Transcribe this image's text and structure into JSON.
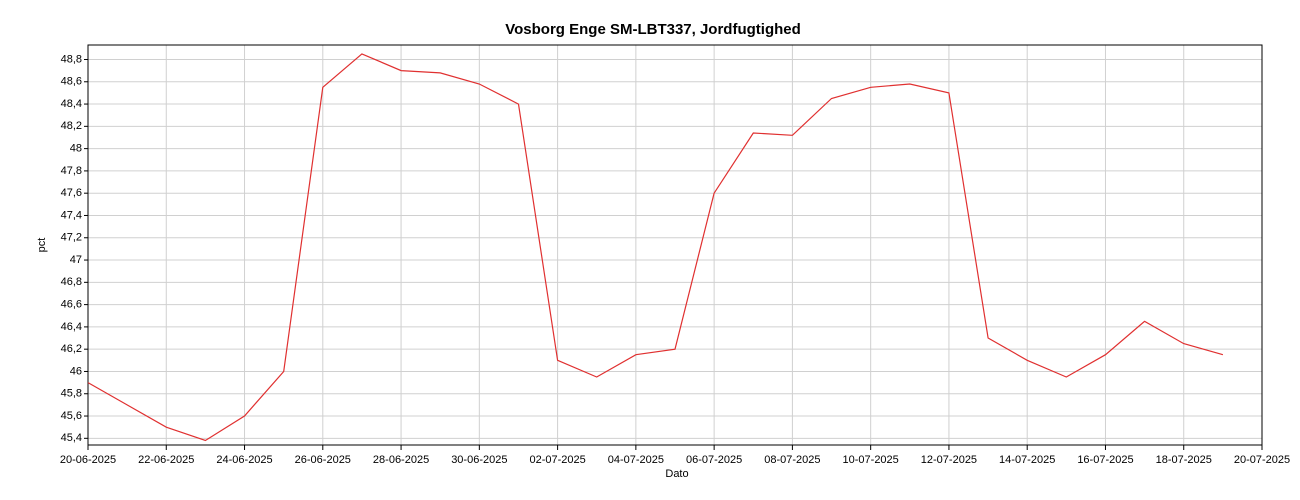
{
  "chart_data": {
    "type": "line",
    "title": "Vosborg Enge SM-LBT337, Jordfugtighed",
    "xlabel": "Dato",
    "ylabel": "pct",
    "x": [
      "2025-06-20",
      "2025-06-21",
      "2025-06-22",
      "2025-06-23",
      "2025-06-24",
      "2025-06-25",
      "2025-06-26",
      "2025-06-27",
      "2025-06-28",
      "2025-06-29",
      "2025-06-30",
      "2025-07-01",
      "2025-07-02",
      "2025-07-03",
      "2025-07-04",
      "2025-07-05",
      "2025-07-06",
      "2025-07-07",
      "2025-07-08",
      "2025-07-09",
      "2025-07-10",
      "2025-07-11",
      "2025-07-12",
      "2025-07-13",
      "2025-07-14",
      "2025-07-15",
      "2025-07-16",
      "2025-07-17",
      "2025-07-18",
      "2025-07-19"
    ],
    "series": [
      {
        "name": "Jordfugtighed",
        "color": "#e03030",
        "values": [
          45.9,
          45.7,
          45.5,
          45.38,
          45.6,
          46.0,
          48.55,
          48.85,
          48.7,
          48.68,
          48.58,
          48.4,
          46.1,
          45.95,
          46.15,
          46.2,
          47.6,
          48.14,
          48.12,
          48.45,
          48.55,
          48.58,
          48.5,
          46.3,
          46.1,
          45.95,
          46.15,
          46.45,
          46.25,
          46.15
        ]
      }
    ],
    "xlim": [
      "2025-06-20",
      "2025-07-20"
    ],
    "xticks": [
      {
        "value": "2025-06-20",
        "label": "20-06-2025"
      },
      {
        "value": "2025-06-22",
        "label": "22-06-2025"
      },
      {
        "value": "2025-06-24",
        "label": "24-06-2025"
      },
      {
        "value": "2025-06-26",
        "label": "26-06-2025"
      },
      {
        "value": "2025-06-28",
        "label": "28-06-2025"
      },
      {
        "value": "2025-06-30",
        "label": "30-06-2025"
      },
      {
        "value": "2025-07-02",
        "label": "02-07-2025"
      },
      {
        "value": "2025-07-04",
        "label": "04-07-2025"
      },
      {
        "value": "2025-07-06",
        "label": "06-07-2025"
      },
      {
        "value": "2025-07-08",
        "label": "08-07-2025"
      },
      {
        "value": "2025-07-10",
        "label": "10-07-2025"
      },
      {
        "value": "2025-07-12",
        "label": "12-07-2025"
      },
      {
        "value": "2025-07-14",
        "label": "14-07-2025"
      },
      {
        "value": "2025-07-16",
        "label": "16-07-2025"
      },
      {
        "value": "2025-07-18",
        "label": "18-07-2025"
      },
      {
        "value": "2025-07-20",
        "label": "20-07-2025"
      }
    ],
    "ylim": [
      45.34,
      48.93
    ],
    "yticks": [
      {
        "value": 45.4,
        "label": "45,4"
      },
      {
        "value": 45.6,
        "label": "45,6"
      },
      {
        "value": 45.8,
        "label": "45,8"
      },
      46,
      {
        "value": 46.2,
        "label": "46,2"
      },
      {
        "value": 46.4,
        "label": "46,4"
      },
      {
        "value": 46.6,
        "label": "46,6"
      },
      {
        "value": 46.8,
        "label": "46,8"
      },
      47,
      {
        "value": 47.2,
        "label": "47,2"
      },
      {
        "value": 47.4,
        "label": "47,4"
      },
      {
        "value": 47.6,
        "label": "47,6"
      },
      {
        "value": 47.8,
        "label": "47,8"
      },
      48,
      {
        "value": 48.2,
        "label": "48,2"
      },
      {
        "value": 48.4,
        "label": "48,4"
      },
      {
        "value": 48.6,
        "label": "48,6"
      },
      {
        "value": 48.8,
        "label": "48,8"
      }
    ],
    "grid": true
  }
}
